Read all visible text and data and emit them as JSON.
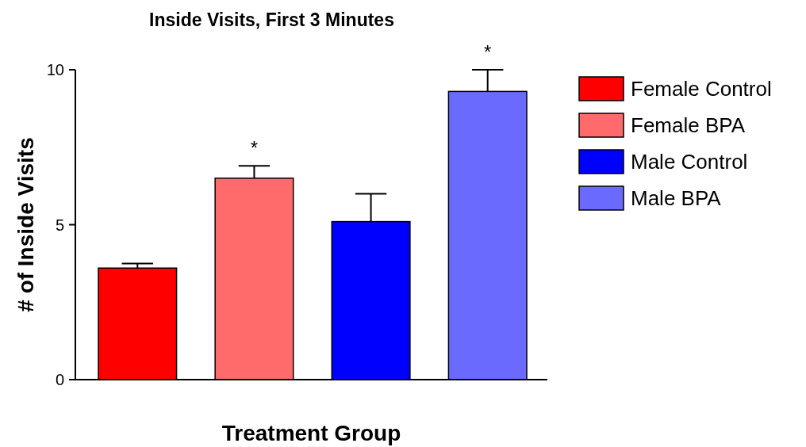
{
  "chart_data": {
    "type": "bar",
    "title": "Inside Visits, First 3 Minutes",
    "xlabel": "Treatment Group",
    "ylabel": "# of Inside Visits",
    "categories": [
      null,
      null,
      null,
      null
    ],
    "series": [
      {
        "name": "Female Control",
        "color": "#ff0000",
        "values": [
          3.6,
          null,
          null,
          null
        ],
        "errors": [
          [
            3.6,
            3.75
          ],
          null,
          null,
          null
        ]
      },
      {
        "name": "Female BPA",
        "color": "#ff6a6a",
        "values": [
          null,
          6.5,
          null,
          null
        ],
        "errors": [
          null,
          [
            6.5,
            6.9
          ],
          null,
          null
        ],
        "value_labels": [
          null,
          "*",
          null,
          null
        ]
      },
      {
        "name": "Male Control",
        "color": "#0000ff",
        "values": [
          null,
          null,
          5.1,
          null
        ],
        "errors": [
          null,
          null,
          [
            5.1,
            6.0
          ],
          null
        ]
      },
      {
        "name": "Male BPA",
        "color": "#6a6aff",
        "values": [
          null,
          null,
          null,
          9.3
        ],
        "errors": [
          null,
          null,
          null,
          [
            9.3,
            10.0
          ]
        ],
        "value_labels": [
          null,
          null,
          null,
          "*"
        ]
      }
    ],
    "ylim": [
      0,
      10
    ],
    "yticks": [
      0,
      5,
      10
    ],
    "grid": false,
    "legend": "right"
  }
}
